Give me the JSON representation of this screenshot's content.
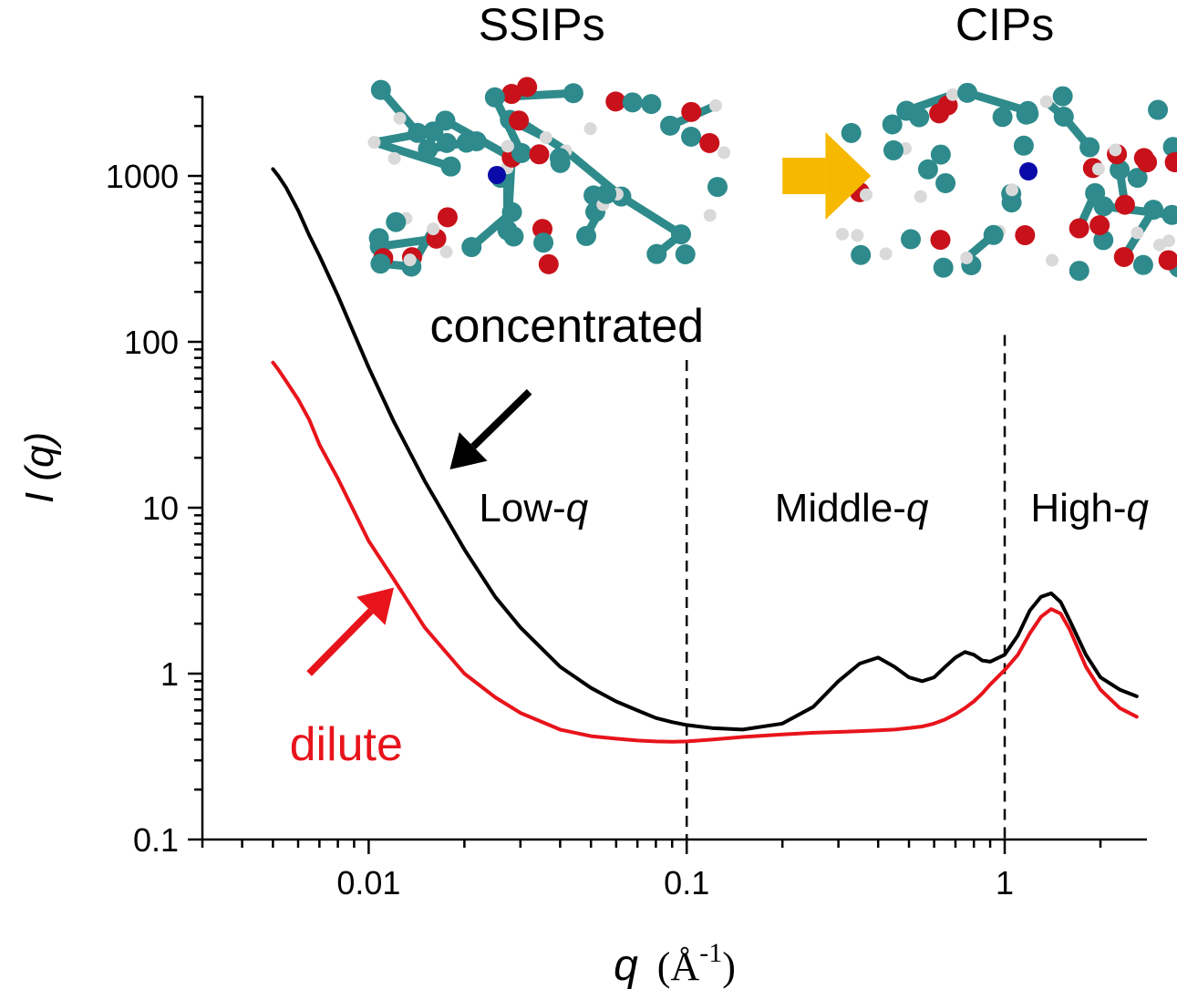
{
  "chart_data": {
    "type": "line",
    "xscale": "log",
    "yscale": "log",
    "xlim": [
      0.003,
      2.8
    ],
    "ylim": [
      0.1,
      3000
    ],
    "xlabel": {
      "main": "q",
      "unit": "(Å",
      "exp": "-1",
      "close": ")"
    },
    "ylabel": {
      "main": "I",
      "rest": " (q)"
    },
    "x_ticks": [
      {
        "value": 0.01,
        "label": "0.01"
      },
      {
        "value": 0.1,
        "label": "0.1"
      },
      {
        "value": 1,
        "label": "1"
      }
    ],
    "y_ticks": [
      {
        "value": 0.1,
        "label": "0.1"
      },
      {
        "value": 1,
        "label": "1"
      },
      {
        "value": 10,
        "label": "10"
      },
      {
        "value": 100,
        "label": "100"
      },
      {
        "value": 1000,
        "label": "1000"
      }
    ],
    "vlines": [
      0.1,
      1
    ],
    "regions": [
      {
        "prefix": "Low-",
        "q": "q",
        "x": 0.033,
        "y": 10
      },
      {
        "prefix": "Middle-",
        "q": "q",
        "x": 0.33,
        "y": 10
      },
      {
        "prefix": "High-",
        "q": "q",
        "x": 1.85,
        "y": 10
      }
    ],
    "pair_labels": [
      {
        "text": "SSIPs",
        "x": 0.035
      },
      {
        "text": "CIPs",
        "x": 1.0
      }
    ],
    "series": [
      {
        "name": "concentrated",
        "color": "#000000",
        "x": [
          0.005,
          0.0052,
          0.0055,
          0.006,
          0.0065,
          0.007,
          0.008,
          0.009,
          0.01,
          0.012,
          0.015,
          0.02,
          0.025,
          0.03,
          0.04,
          0.05,
          0.06,
          0.07,
          0.08,
          0.09,
          0.1,
          0.12,
          0.15,
          0.2,
          0.25,
          0.3,
          0.35,
          0.4,
          0.45,
          0.5,
          0.55,
          0.6,
          0.65,
          0.7,
          0.75,
          0.8,
          0.85,
          0.9,
          1.0,
          1.1,
          1.2,
          1.3,
          1.4,
          1.5,
          1.6,
          1.8,
          2.0,
          2.3,
          2.6
        ],
        "y": [
          1100,
          1000,
          850,
          620,
          440,
          330,
          190,
          112,
          70,
          33,
          14.5,
          5.6,
          2.9,
          1.9,
          1.1,
          0.82,
          0.68,
          0.6,
          0.54,
          0.51,
          0.49,
          0.47,
          0.46,
          0.5,
          0.63,
          0.9,
          1.15,
          1.25,
          1.1,
          0.95,
          0.9,
          0.95,
          1.1,
          1.25,
          1.35,
          1.3,
          1.2,
          1.18,
          1.3,
          1.7,
          2.4,
          2.9,
          3.05,
          2.7,
          2.1,
          1.3,
          0.95,
          0.8,
          0.73
        ]
      },
      {
        "name": "dilute",
        "color": "#e8141b",
        "x": [
          0.005,
          0.0052,
          0.0055,
          0.006,
          0.0065,
          0.007,
          0.008,
          0.009,
          0.01,
          0.012,
          0.015,
          0.02,
          0.025,
          0.03,
          0.04,
          0.05,
          0.06,
          0.07,
          0.08,
          0.09,
          0.1,
          0.12,
          0.15,
          0.2,
          0.25,
          0.3,
          0.35,
          0.4,
          0.45,
          0.5,
          0.55,
          0.6,
          0.65,
          0.7,
          0.75,
          0.8,
          0.85,
          0.9,
          1.0,
          1.1,
          1.2,
          1.3,
          1.4,
          1.5,
          1.6,
          1.8,
          2.0,
          2.3,
          2.6
        ],
        "y": [
          75,
          68,
          58,
          45,
          34,
          24,
          15,
          9.5,
          6.3,
          3.7,
          1.9,
          1.0,
          0.72,
          0.58,
          0.46,
          0.42,
          0.405,
          0.395,
          0.39,
          0.388,
          0.39,
          0.4,
          0.415,
          0.43,
          0.44,
          0.445,
          0.45,
          0.455,
          0.46,
          0.47,
          0.48,
          0.5,
          0.53,
          0.57,
          0.62,
          0.68,
          0.76,
          0.86,
          1.05,
          1.3,
          1.75,
          2.2,
          2.45,
          2.3,
          1.85,
          1.1,
          0.8,
          0.62,
          0.55
        ]
      }
    ],
    "series_labels": [
      {
        "text": "concentrated",
        "color": "#000000",
        "x": 0.042,
        "y": 100
      },
      {
        "text": "dilute",
        "color": "#e8141b",
        "x": 0.0085,
        "y": 0.3
      }
    ],
    "arrows": [
      {
        "name": "concentrated-arrow",
        "color": "#000000",
        "from": [
          0.032,
          50
        ],
        "to": [
          0.018,
          17
        ]
      },
      {
        "name": "dilute-arrow",
        "color": "#e8141b",
        "from": [
          0.0065,
          1.0
        ],
        "to": [
          0.012,
          3.3
        ]
      },
      {
        "name": "transition-arrow",
        "color": "#f7b800",
        "from": [
          0.2,
          1000
        ],
        "to": [
          0.38,
          1000
        ]
      }
    ]
  }
}
